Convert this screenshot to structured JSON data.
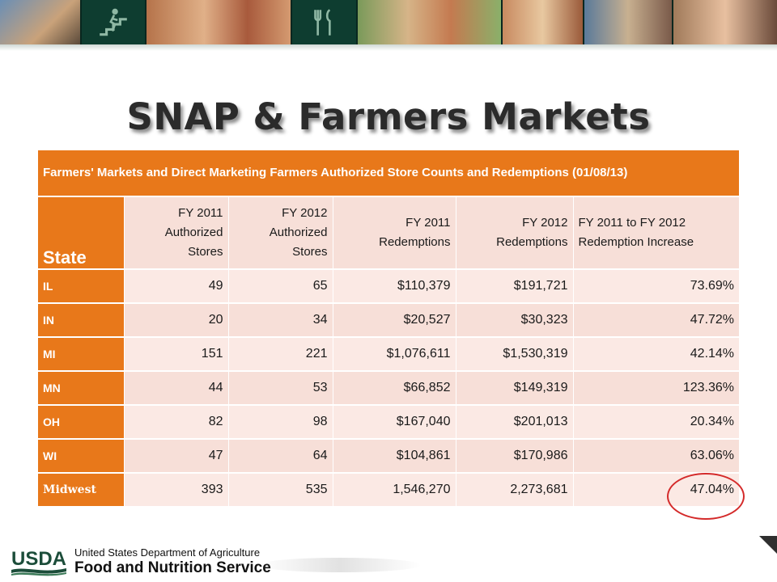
{
  "slide": {
    "title": "SNAP & Farmers Markets"
  },
  "table": {
    "caption": "Farmers' Markets and Direct Marketing Farmers Authorized Store Counts and Redemptions (01/08/13)",
    "headers": {
      "state": "State",
      "fy11_stores": "FY 2011 Authorized Stores",
      "fy12_stores": "FY 2012 Authorized Stores",
      "fy11_redemptions": "FY 2011 Redemptions",
      "fy12_redemptions": "FY 2012 Redemptions",
      "increase": "FY 2011 to FY 2012 Redemption Increase"
    },
    "rows": [
      {
        "state": "IL",
        "fy11_stores": "49",
        "fy12_stores": "65",
        "fy11_redemptions": "$110,379",
        "fy12_redemptions": "$191,721",
        "increase": "73.69%"
      },
      {
        "state": "IN",
        "fy11_stores": "20",
        "fy12_stores": "34",
        "fy11_redemptions": "$20,527",
        "fy12_redemptions": "$30,323",
        "increase": "47.72%"
      },
      {
        "state": "MI",
        "fy11_stores": "151",
        "fy12_stores": "221",
        "fy11_redemptions": "$1,076,611",
        "fy12_redemptions": "$1,530,319",
        "increase": "42.14%"
      },
      {
        "state": "MN",
        "fy11_stores": "44",
        "fy12_stores": "53",
        "fy11_redemptions": "$66,852",
        "fy12_redemptions": "$149,319",
        "increase": "123.36%"
      },
      {
        "state": "OH",
        "fy11_stores": "82",
        "fy12_stores": "98",
        "fy11_redemptions": "$167,040",
        "fy12_redemptions": "$201,013",
        "increase": "20.34%"
      },
      {
        "state": "WI",
        "fy11_stores": "47",
        "fy12_stores": "64",
        "fy11_redemptions": "$104,861",
        "fy12_redemptions": "$170,986",
        "increase": "63.06%"
      },
      {
        "state": "Midwest",
        "fy11_stores": "393",
        "fy12_stores": "535",
        "fy11_redemptions": "1,546,270",
        "fy12_redemptions": "2,273,681",
        "increase": "47.04%"
      }
    ]
  },
  "footer": {
    "logo_text": "USDA",
    "agency_line1": "United States Department of Agriculture",
    "agency_line2": "Food and Nutrition Service"
  },
  "colors": {
    "orange": "#e8781a",
    "pink": "#f7dfd8",
    "highlight_circle": "#d42a2a",
    "banner": "#0e3d30"
  },
  "banner_icons": [
    "basketball-photo",
    "stairs-fitness-icon",
    "kids-photo",
    "utensils-icon",
    "family-meal-photo",
    "family-meal-photo-2",
    "shopping-photo",
    "kitchen-photo"
  ]
}
